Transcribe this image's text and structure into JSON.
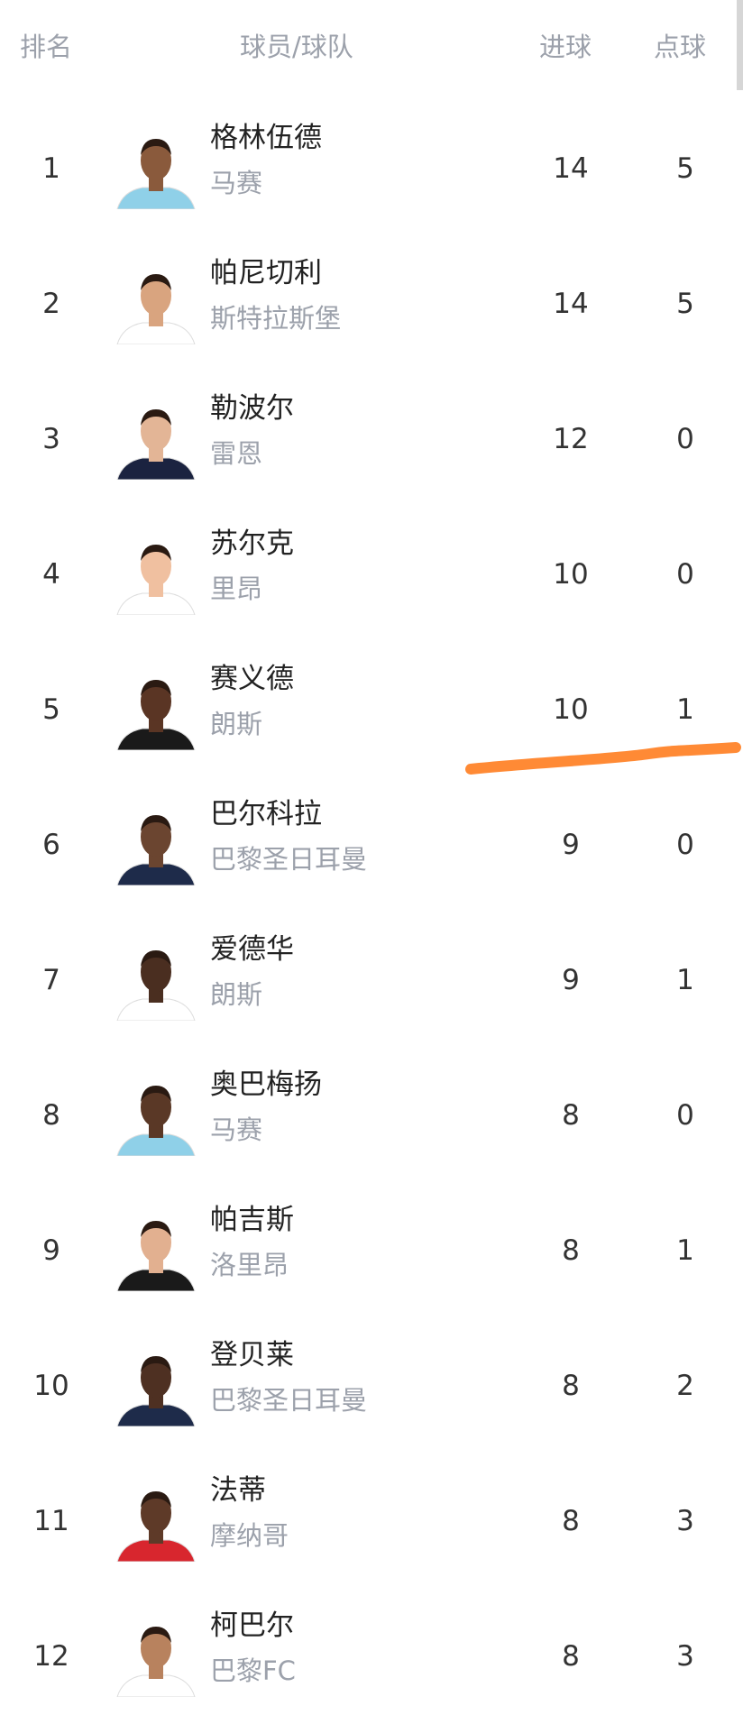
{
  "header": {
    "rank": "排名",
    "player_team": "球员/球队",
    "goals": "进球",
    "penalties": "点球"
  },
  "rows": [
    {
      "rank": "1",
      "name": "格林伍德",
      "team": "马赛",
      "goals": "14",
      "penalties": "5",
      "skin": "#8a5a3c",
      "shirt": "#8fd0e8"
    },
    {
      "rank": "2",
      "name": "帕尼切利",
      "team": "斯特拉斯堡",
      "goals": "14",
      "penalties": "5",
      "skin": "#d9a47f",
      "shirt": "#ffffff"
    },
    {
      "rank": "3",
      "name": "勒波尔",
      "team": "雷恩",
      "goals": "12",
      "penalties": "0",
      "skin": "#e3b596",
      "shirt": "#1b2340"
    },
    {
      "rank": "4",
      "name": "苏尔克",
      "team": "里昂",
      "goals": "10",
      "penalties": "0",
      "skin": "#f0c0a0",
      "shirt": "#ffffff"
    },
    {
      "rank": "5",
      "name": "赛义德",
      "team": "朗斯",
      "goals": "10",
      "penalties": "1",
      "skin": "#5a3524",
      "shirt": "#1a1a1a"
    },
    {
      "rank": "6",
      "name": "巴尔科拉",
      "team": "巴黎圣日耳曼",
      "goals": "9",
      "penalties": "0",
      "skin": "#6b4530",
      "shirt": "#1e2b4a"
    },
    {
      "rank": "7",
      "name": "爱德华",
      "team": "朗斯",
      "goals": "9",
      "penalties": "1",
      "skin": "#4a2e20",
      "shirt": "#ffffff"
    },
    {
      "rank": "8",
      "name": "奥巴梅扬",
      "team": "马赛",
      "goals": "8",
      "penalties": "0",
      "skin": "#5a3826",
      "shirt": "#8fd0e8"
    },
    {
      "rank": "9",
      "name": "帕吉斯",
      "team": "洛里昂",
      "goals": "8",
      "penalties": "1",
      "skin": "#e2b090",
      "shirt": "#1a1a1a"
    },
    {
      "rank": "10",
      "name": "登贝莱",
      "team": "巴黎圣日耳曼",
      "goals": "8",
      "penalties": "2",
      "skin": "#4e3022",
      "shirt": "#1e2b4a"
    },
    {
      "rank": "11",
      "name": "法蒂",
      "team": "摩纳哥",
      "goals": "8",
      "penalties": "3",
      "skin": "#5e3a28",
      "shirt": "#d8262e"
    },
    {
      "rank": "12",
      "name": "柯巴尔",
      "team": "巴黎FC",
      "goals": "8",
      "penalties": "3",
      "skin": "#b8825e",
      "shirt": "#ffffff"
    }
  ],
  "annotation_color": "#ff8a35"
}
